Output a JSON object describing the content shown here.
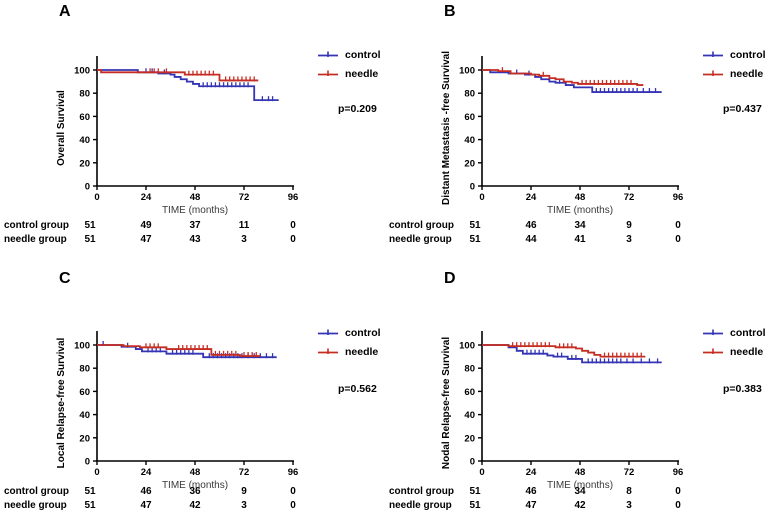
{
  "figure": {
    "background": "#ffffff",
    "panel_letters": [
      "A",
      "B",
      "C",
      "D"
    ]
  },
  "colors": {
    "axis": "#000000",
    "text": "#000000",
    "xlabel_text": "#3a3a3a",
    "control": "#3434b4",
    "needle": "#c62d22"
  },
  "risk_table": {
    "row_labels": [
      "control group",
      "needle group"
    ]
  },
  "chart_data": [
    {
      "type": "line",
      "subtype": "kaplan_meier_step",
      "panel": "A",
      "ylabel": "Overall Survival",
      "xlabel": "TIME (months)",
      "xlim": [
        0,
        96
      ],
      "ylim": [
        0,
        100
      ],
      "x_ticks": [
        0,
        24,
        48,
        72,
        96
      ],
      "y_ticks": [
        0,
        20,
        40,
        60,
        80,
        100
      ],
      "grid": false,
      "legend_position": "right",
      "p_value": "p=0.209",
      "series": [
        {
          "name": "control",
          "color": "#3434b4",
          "end_x": 89,
          "steps": [
            [
              0,
              100
            ],
            [
              20,
              98
            ],
            [
              30,
              97
            ],
            [
              36,
              96
            ],
            [
              38,
              94
            ],
            [
              41,
              92
            ],
            [
              44,
              90
            ],
            [
              47,
              88
            ],
            [
              50,
              86
            ],
            [
              77,
              74
            ]
          ],
          "censor_x": [
            24,
            27,
            33,
            52,
            54,
            56,
            58,
            60,
            62,
            64,
            66,
            68,
            70,
            72,
            74,
            81,
            84,
            86
          ]
        },
        {
          "name": "needle",
          "color": "#c62d22",
          "end_x": 79,
          "steps": [
            [
              0,
              100
            ],
            [
              2,
              98
            ],
            [
              43,
              96
            ],
            [
              60,
              91
            ]
          ],
          "censor_x": [
            26,
            28,
            30,
            34,
            45,
            47,
            49,
            51,
            53,
            55,
            57,
            63,
            65,
            67,
            69,
            71,
            73,
            75,
            77
          ]
        }
      ],
      "at_risk": {
        "times": [
          0,
          24,
          48,
          72,
          96
        ],
        "rows": [
          {
            "label": "control group",
            "counts": [
              51,
              49,
              37,
              11,
              0
            ]
          },
          {
            "label": "needle group",
            "counts": [
              51,
              47,
              43,
              3,
              0
            ]
          }
        ]
      }
    },
    {
      "type": "line",
      "subtype": "kaplan_meier_step",
      "panel": "B",
      "ylabel": "Distant Metastasis -free Survival",
      "xlabel": "TIME (months)",
      "xlim": [
        0,
        96
      ],
      "ylim": [
        0,
        100
      ],
      "x_ticks": [
        0,
        24,
        48,
        72,
        96
      ],
      "y_ticks": [
        0,
        20,
        40,
        60,
        80,
        100
      ],
      "grid": false,
      "legend_position": "right",
      "p_value": "p=0.437",
      "series": [
        {
          "name": "control",
          "color": "#3434b4",
          "end_x": 88,
          "steps": [
            [
              0,
              100
            ],
            [
              4,
              98
            ],
            [
              13,
              97
            ],
            [
              21,
              96
            ],
            [
              26,
              94
            ],
            [
              29,
              92
            ],
            [
              33,
              90
            ],
            [
              36,
              89
            ],
            [
              41,
              87
            ],
            [
              45,
              85
            ],
            [
              54,
              81
            ]
          ],
          "censor_x": [
            17,
            23,
            38,
            56,
            58,
            60,
            62,
            64,
            66,
            68,
            70,
            72,
            74,
            76,
            79,
            82,
            85
          ]
        },
        {
          "name": "needle",
          "color": "#c62d22",
          "end_x": 79,
          "steps": [
            [
              0,
              100
            ],
            [
              8,
              99
            ],
            [
              14,
              97
            ],
            [
              24,
              96
            ],
            [
              28,
              95
            ],
            [
              33,
              93
            ],
            [
              36,
              92
            ],
            [
              40,
              90
            ],
            [
              44,
              89
            ],
            [
              47,
              88
            ],
            [
              76,
              87
            ]
          ],
          "censor_x": [
            10,
            30,
            49,
            51,
            53,
            55,
            57,
            59,
            61,
            63,
            65,
            67,
            69,
            71,
            73
          ]
        }
      ],
      "at_risk": {
        "times": [
          0,
          24,
          48,
          72,
          96
        ],
        "rows": [
          {
            "label": "control group",
            "counts": [
              51,
              46,
              34,
              9,
              0
            ]
          },
          {
            "label": "needle group",
            "counts": [
              51,
              44,
              41,
              3,
              0
            ]
          }
        ]
      }
    },
    {
      "type": "line",
      "subtype": "kaplan_meier_step",
      "panel": "C",
      "ylabel": "Local Relapse-free Survival",
      "xlabel": "TIME (months)",
      "xlim": [
        0,
        96
      ],
      "ylim": [
        0,
        100
      ],
      "x_ticks": [
        0,
        24,
        48,
        72,
        96
      ],
      "y_ticks": [
        0,
        20,
        40,
        60,
        80,
        100
      ],
      "grid": false,
      "legend_position": "right",
      "p_value": "p=0.562",
      "series": [
        {
          "name": "control",
          "color": "#3434b4",
          "end_x": 88,
          "steps": [
            [
              0,
              100
            ],
            [
              12,
              98.5
            ],
            [
              19,
              96.5
            ],
            [
              22,
              94.5
            ],
            [
              34,
              92.5
            ],
            [
              52,
              89.5
            ]
          ],
          "censor_x": [
            3,
            15,
            25,
            27,
            29,
            31,
            37,
            39,
            41,
            43,
            45,
            47,
            55,
            57,
            59,
            61,
            63,
            65,
            67,
            69,
            71,
            74,
            77,
            80,
            83,
            86
          ]
        },
        {
          "name": "needle",
          "color": "#c62d22",
          "end_x": 80,
          "steps": [
            [
              0,
              100
            ],
            [
              13,
              99
            ],
            [
              21,
              98
            ],
            [
              34,
              96.5
            ],
            [
              56,
              91.5
            ],
            [
              70,
              90.5
            ]
          ],
          "censor_x": [
            24,
            26,
            28,
            30,
            40,
            42,
            44,
            46,
            48,
            50,
            52,
            54,
            58,
            60,
            62,
            64,
            66,
            68,
            72,
            74,
            76,
            78
          ]
        }
      ],
      "at_risk": {
        "times": [
          0,
          24,
          48,
          72,
          96
        ],
        "rows": [
          {
            "label": "control group",
            "counts": [
              51,
              46,
              36,
              9,
              0
            ]
          },
          {
            "label": "needle group",
            "counts": [
              51,
              47,
              42,
              3,
              0
            ]
          }
        ]
      }
    },
    {
      "type": "line",
      "subtype": "kaplan_meier_step",
      "panel": "D",
      "ylabel": "Nodal Relapse-free Survival",
      "xlabel": "TIME (months)",
      "xlim": [
        0,
        96
      ],
      "ylim": [
        0,
        100
      ],
      "x_ticks": [
        0,
        24,
        48,
        72,
        96
      ],
      "y_ticks": [
        0,
        20,
        40,
        60,
        80,
        100
      ],
      "grid": false,
      "legend_position": "right",
      "p_value": "p=0.383",
      "series": [
        {
          "name": "control",
          "color": "#3434b4",
          "end_x": 88,
          "steps": [
            [
              0,
              100
            ],
            [
              13,
              98
            ],
            [
              17,
              95
            ],
            [
              20,
              92.5
            ],
            [
              32,
              91
            ],
            [
              35,
              90
            ],
            [
              42,
              88
            ],
            [
              49,
              85
            ]
          ],
          "censor_x": [
            22,
            24,
            26,
            28,
            30,
            37,
            39,
            44,
            46,
            52,
            54,
            56,
            58,
            60,
            62,
            64,
            66,
            68,
            71,
            74,
            78,
            82,
            86
          ]
        },
        {
          "name": "needle",
          "color": "#c62d22",
          "end_x": 80,
          "steps": [
            [
              0,
              100
            ],
            [
              13,
              99
            ],
            [
              36,
              98
            ],
            [
              46,
              97
            ],
            [
              49,
              95
            ],
            [
              52,
              93.5
            ],
            [
              55,
              91.5
            ],
            [
              58,
              90
            ]
          ],
          "censor_x": [
            15,
            17,
            19,
            21,
            23,
            25,
            27,
            29,
            31,
            33,
            38,
            40,
            42,
            44,
            60,
            62,
            64,
            66,
            68,
            70,
            72,
            74,
            76,
            78
          ]
        }
      ],
      "at_risk": {
        "times": [
          0,
          24,
          48,
          72,
          96
        ],
        "rows": [
          {
            "label": "control group",
            "counts": [
              51,
              46,
              34,
              8,
              0
            ]
          },
          {
            "label": "needle group",
            "counts": [
              51,
              47,
              42,
              3,
              0
            ]
          }
        ]
      }
    }
  ]
}
